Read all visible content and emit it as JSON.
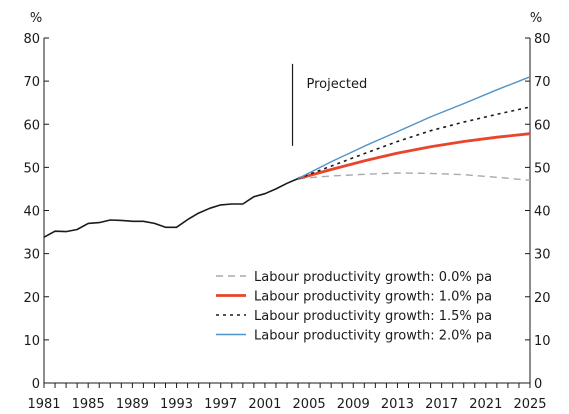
{
  "chart_data": {
    "type": "line",
    "title": "",
    "ylabel_left": "%",
    "ylabel_right": "%",
    "xlim": [
      1981,
      2025
    ],
    "ylim": [
      0,
      80
    ],
    "yticks": [
      0,
      10,
      20,
      30,
      40,
      50,
      60,
      70,
      80
    ],
    "xtick_labels": [
      "1981",
      "1985",
      "1989",
      "1993",
      "1997",
      "2001",
      "2005",
      "2009",
      "2013",
      "2017",
      "2021",
      "2025"
    ],
    "grid": false,
    "legend_position": "bottom-right",
    "annotation": {
      "text": "Projected",
      "x": 2003.5,
      "y_from": 55,
      "y_to": 74
    },
    "history": {
      "color": "#1a1a1a",
      "points": [
        [
          1981,
          33.8
        ],
        [
          1982,
          35.2
        ],
        [
          1983,
          35.1
        ],
        [
          1984,
          35.6
        ],
        [
          1985,
          37.0
        ],
        [
          1986,
          37.2
        ],
        [
          1987,
          37.8
        ],
        [
          1988,
          37.7
        ],
        [
          1989,
          37.5
        ],
        [
          1990,
          37.5
        ],
        [
          1991,
          37.0
        ],
        [
          1992,
          36.1
        ],
        [
          1993,
          36.1
        ],
        [
          1994,
          37.9
        ],
        [
          1995,
          39.4
        ],
        [
          1996,
          40.5
        ],
        [
          1997,
          41.3
        ],
        [
          1998,
          41.5
        ],
        [
          1999,
          41.5
        ],
        [
          2000,
          43.2
        ],
        [
          2001,
          43.9
        ],
        [
          2002,
          45.0
        ],
        [
          2003,
          46.3
        ],
        [
          2004,
          47.4
        ]
      ]
    },
    "series": [
      {
        "name": "Labour productivity growth: 0.0% pa",
        "color": "#a9a9ae",
        "dash": "dashed",
        "points": [
          [
            2004,
            47.4
          ],
          [
            2007,
            48.0
          ],
          [
            2010,
            48.4
          ],
          [
            2013,
            48.7
          ],
          [
            2016,
            48.6
          ],
          [
            2019,
            48.3
          ],
          [
            2022,
            47.7
          ],
          [
            2025,
            47.0
          ]
        ]
      },
      {
        "name": "Labour productivity growth: 1.0% pa",
        "color": "#e8452c",
        "dash": "solid",
        "points": [
          [
            2004,
            47.4
          ],
          [
            2007,
            49.5
          ],
          [
            2010,
            51.5
          ],
          [
            2013,
            53.3
          ],
          [
            2016,
            54.8
          ],
          [
            2019,
            56.0
          ],
          [
            2022,
            57.0
          ],
          [
            2025,
            57.8
          ]
        ]
      },
      {
        "name": "Labour productivity growth: 1.5% pa",
        "color": "#1a1a1a",
        "dash": "dotted",
        "points": [
          [
            2004,
            47.4
          ],
          [
            2007,
            50.3
          ],
          [
            2010,
            53.2
          ],
          [
            2013,
            56.0
          ],
          [
            2016,
            58.5
          ],
          [
            2019,
            60.5
          ],
          [
            2022,
            62.3
          ],
          [
            2025,
            64.0
          ]
        ]
      },
      {
        "name": "Labour productivity growth: 2.0% pa",
        "color": "#4f93c8",
        "dash": "solid",
        "points": [
          [
            2004,
            47.4
          ],
          [
            2007,
            51.3
          ],
          [
            2010,
            54.9
          ],
          [
            2013,
            58.3
          ],
          [
            2016,
            61.7
          ],
          [
            2019,
            64.8
          ],
          [
            2022,
            68.0
          ],
          [
            2025,
            71.0
          ]
        ]
      }
    ]
  }
}
